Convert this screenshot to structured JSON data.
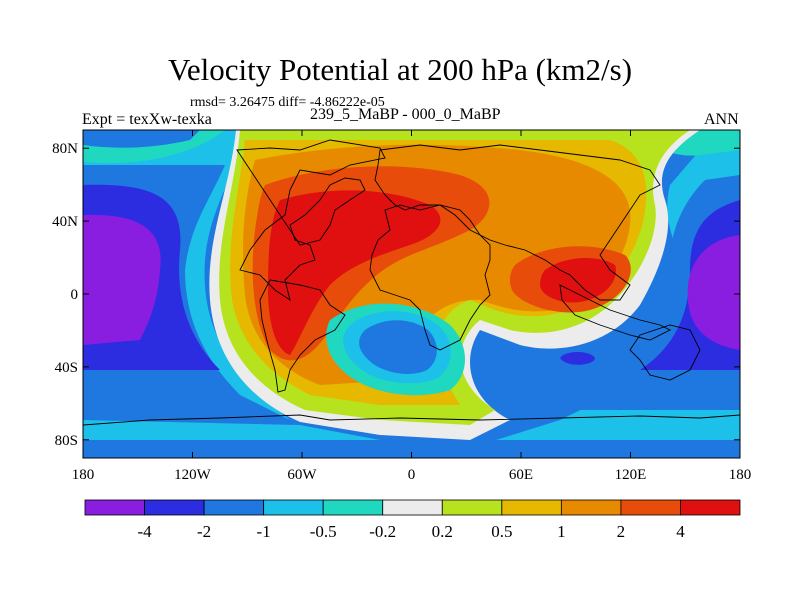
{
  "title": "Velocity Potential at 200 hPa (km2/s)",
  "stats_text": "rmsd= 3.26475 diff= -4.86222e-05",
  "left_label": "Expt = texXw-texka",
  "center_label": "239_5_MaBP - 000_0_MaBP",
  "right_label": "ANN",
  "axes": {
    "lon_range": [
      -180,
      180
    ],
    "lat_range": [
      -90,
      90
    ],
    "x_ticks": [
      {
        "lon": -180,
        "label": "180"
      },
      {
        "lon": -120,
        "label": "120W"
      },
      {
        "lon": -60,
        "label": "60W"
      },
      {
        "lon": 0,
        "label": "0"
      },
      {
        "lon": 60,
        "label": "60E"
      },
      {
        "lon": 120,
        "label": "120E"
      },
      {
        "lon": 180,
        "label": "180"
      }
    ],
    "y_ticks": [
      {
        "lat": 80,
        "label": "80N"
      },
      {
        "lat": 40,
        "label": "40N"
      },
      {
        "lat": 0,
        "label": "0"
      },
      {
        "lat": -40,
        "label": "40S"
      },
      {
        "lat": -80,
        "label": "80S"
      }
    ]
  },
  "colorbar": {
    "colors": [
      "#8a1ee0",
      "#2c2ce0",
      "#1f77e0",
      "#1cc0e8",
      "#20d8c0",
      "#ececec",
      "#b6e21e",
      "#e6b800",
      "#e88a00",
      "#e84c0a",
      "#e01010"
    ],
    "labels": [
      "-4",
      "-2",
      "-1",
      "-0.5",
      "-0.2",
      "0.2",
      "0.5",
      "1",
      "2",
      "4"
    ]
  },
  "chart_data": {
    "type": "heatmap",
    "title": "Velocity Potential at 200 hPa (km2/s)",
    "subtitle": "239_5_MaBP - 000_0_MaBP",
    "xlabel": "",
    "ylabel": "",
    "xlim": [
      -180,
      180
    ],
    "ylim": [
      -90,
      90
    ],
    "contour_levels": [
      -4,
      -2,
      -1,
      -0.5,
      -0.2,
      0.2,
      0.5,
      1,
      2,
      4
    ],
    "features": [
      {
        "name": "positive maximum",
        "lon": -75,
        "lat": 5,
        "value": 5
      },
      {
        "name": "positive maximum",
        "lon": 95,
        "lat": 5,
        "value": 4.5
      },
      {
        "name": "negative minimum",
        "lon": -160,
        "lat": 10,
        "value": -4.5
      },
      {
        "name": "negative minimum",
        "lon": 165,
        "lat": 0,
        "value": -4.5
      },
      {
        "name": "negative minimum",
        "lon": 0,
        "lat": -25,
        "value": -1.5
      }
    ]
  }
}
